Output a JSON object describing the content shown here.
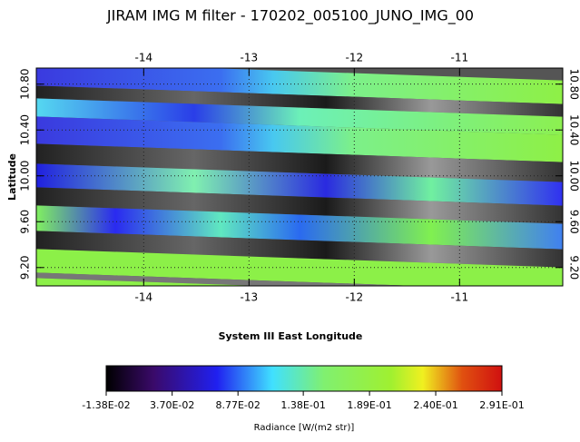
{
  "chart_data": {
    "type": "image-map",
    "title": "JIRAM IMG M filter - 170202_005100_JUNO_IMG_00",
    "xlabel": "System III East Longitude",
    "ylabel": "Latitude",
    "xlim": [
      -15.02,
      -10.02
    ],
    "xticks": [
      -14,
      -13,
      -12,
      -11
    ],
    "ylim": [
      9.04,
      10.94
    ],
    "yticks": [
      {
        "value": 9.2,
        "label": "9.20"
      },
      {
        "value": 9.6,
        "label": "9.60"
      },
      {
        "value": 10,
        "label": "10.00"
      },
      {
        "value": 10.4,
        "label": "10.40"
      },
      {
        "value": 10.8,
        "label": "10.80"
      }
    ],
    "grid": true,
    "colorbar": {
      "label": "Radiance [W/(m2 str)]",
      "lim": [
        -0.0138,
        0.291
      ],
      "ticks": [
        {
          "value": -0.0138,
          "label": "-1.38E-02"
        },
        {
          "value": 0.037,
          "label": "3.70E-02"
        },
        {
          "value": 0.0877,
          "label": "8.77E-02"
        },
        {
          "value": 0.138,
          "label": "1.38E-01"
        },
        {
          "value": 0.189,
          "label": "1.89E-01"
        },
        {
          "value": 0.24,
          "label": "2.40E-01"
        },
        {
          "value": 0.291,
          "label": "2.91E-01"
        }
      ]
    }
  }
}
